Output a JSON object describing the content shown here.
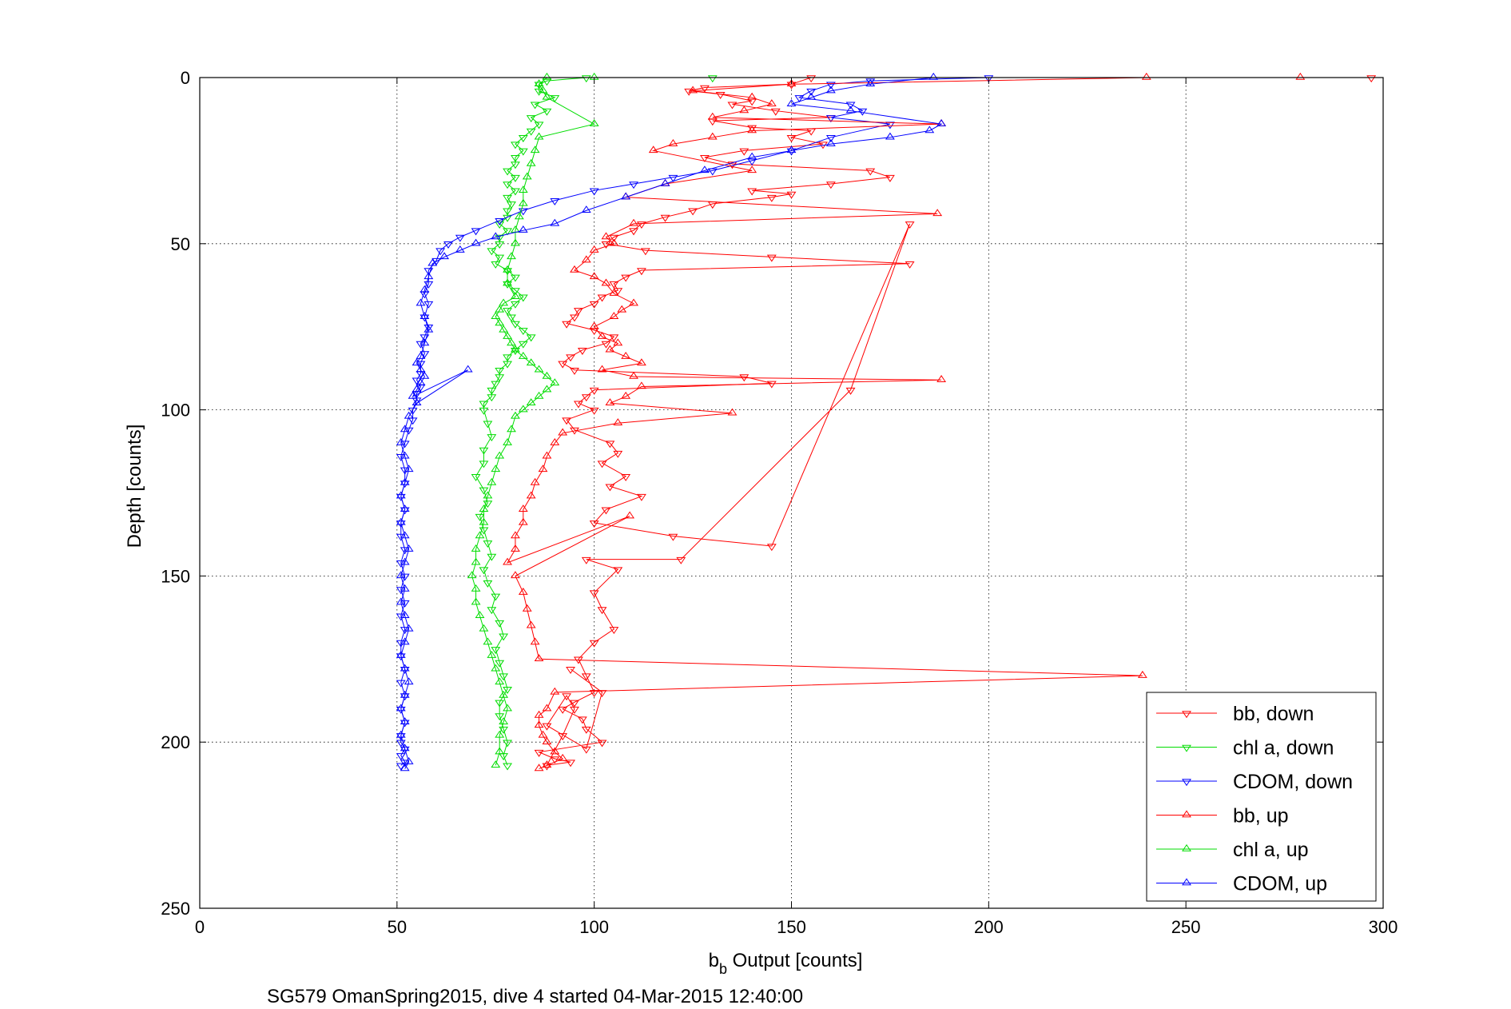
{
  "chart_data": {
    "type": "line",
    "xlabel_main": "b",
    "xlabel_sub": "b",
    "xlabel_rest": " Output [counts]",
    "ylabel": "Depth [counts]",
    "caption": "SG579 OmanSpring2015, dive 4 started 04-Mar-2015 12:40:00",
    "xlim": [
      0,
      300
    ],
    "ylim": [
      0,
      250
    ],
    "y_reversed": true,
    "xticks": [
      0,
      50,
      100,
      150,
      200,
      250,
      300
    ],
    "yticks": [
      0,
      50,
      100,
      150,
      200,
      250
    ],
    "grid": true,
    "legend_position": "bottom-right",
    "series": [
      {
        "name": "bb, down",
        "color": "#ff0000",
        "marker": "triangle-down",
        "x": [
          297,
          155,
          150,
          128,
          124,
          132,
          140,
          135,
          146,
          160,
          130,
          140,
          155,
          150,
          158,
          138,
          128,
          135,
          170,
          175,
          160,
          140,
          150,
          145,
          130,
          125,
          118,
          112,
          110,
          105,
          103,
          113,
          145,
          180,
          112,
          108,
          105,
          106,
          102,
          100,
          96,
          95,
          93,
          100,
          105,
          103,
          97,
          94,
          92,
          95,
          138,
          145,
          100,
          98,
          96,
          100,
          93,
          95,
          104,
          106,
          102,
          108,
          104,
          112,
          103,
          100,
          120,
          145,
          180,
          165,
          122,
          98,
          106,
          100,
          102,
          105,
          100,
          96,
          98,
          100,
          95,
          92,
          97,
          98,
          102,
          86,
          90,
          94,
          88,
          92,
          95,
          93,
          88,
          98,
          102,
          94
        ],
        "y": [
          0,
          0,
          2,
          3,
          4,
          5,
          7,
          8,
          10,
          12,
          13,
          15,
          16,
          18,
          20,
          22,
          24,
          26,
          28,
          30,
          32,
          34,
          35,
          36,
          38,
          40,
          42,
          44,
          46,
          48,
          50,
          52,
          54,
          56,
          58,
          60,
          62,
          64,
          66,
          68,
          70,
          72,
          74,
          76,
          78,
          80,
          82,
          84,
          86,
          88,
          90,
          92,
          94,
          96,
          98,
          100,
          103,
          106,
          110,
          113,
          116,
          120,
          123,
          126,
          130,
          134,
          138,
          141,
          44,
          94,
          145,
          145,
          148,
          155,
          160,
          166,
          170,
          175,
          180,
          185,
          188,
          190,
          193,
          196,
          200,
          203,
          205,
          206,
          207,
          198,
          190,
          186,
          195,
          202,
          185,
          178
        ]
      },
      {
        "name": "chl a, down",
        "color": "#00dd00",
        "marker": "triangle-down",
        "x": [
          130,
          98,
          88,
          86,
          86,
          90,
          85,
          88,
          84,
          86,
          84,
          82,
          80,
          82,
          80,
          80,
          78,
          80,
          78,
          80,
          78,
          79,
          78,
          78,
          76,
          78,
          76,
          76,
          74,
          76,
          75,
          78,
          80,
          78,
          80,
          82,
          80,
          78,
          79,
          80,
          82,
          84,
          82,
          80,
          78,
          78,
          76,
          76,
          75,
          74,
          74,
          72,
          72,
          73,
          74,
          72,
          72,
          70,
          72,
          73,
          71,
          72,
          73,
          74,
          72,
          73,
          75,
          74,
          76,
          77,
          75,
          76,
          77,
          78,
          76,
          76,
          77,
          78,
          77,
          78
        ],
        "y": [
          0,
          0,
          1,
          2,
          4,
          6,
          8,
          10,
          12,
          14,
          16,
          18,
          20,
          22,
          24,
          26,
          28,
          30,
          32,
          34,
          36,
          38,
          40,
          42,
          44,
          46,
          48,
          50,
          52,
          54,
          56,
          58,
          60,
          62,
          64,
          66,
          68,
          70,
          72,
          74,
          76,
          78,
          80,
          82,
          84,
          86,
          88,
          90,
          92,
          94,
          96,
          98,
          100,
          104,
          108,
          112,
          116,
          120,
          124,
          128,
          132,
          136,
          140,
          144,
          148,
          152,
          156,
          160,
          164,
          168,
          172,
          176,
          180,
          184,
          188,
          192,
          196,
          200,
          204,
          207
        ]
      },
      {
        "name": "CDOM, down",
        "color": "#0000ff",
        "marker": "triangle-down",
        "x": [
          200,
          170,
          160,
          155,
          152,
          165,
          168,
          160,
          175,
          160,
          150,
          140,
          130,
          120,
          110,
          100,
          90,
          82,
          76,
          70,
          66,
          63,
          61,
          60,
          58,
          58,
          57,
          58,
          57,
          58,
          57,
          56,
          57,
          56,
          56,
          55,
          56,
          55,
          55,
          54,
          54,
          53,
          52,
          51,
          52,
          52,
          51,
          52,
          51,
          51,
          52,
          51,
          52,
          51,
          52,
          51,
          52,
          51,
          51,
          52,
          51,
          52,
          51,
          52,
          51,
          51,
          52,
          51,
          52,
          51
        ],
        "y": [
          0,
          1,
          2,
          4,
          6,
          8,
          10,
          12,
          14,
          18,
          22,
          25,
          28,
          30,
          32,
          34,
          37,
          40,
          43,
          46,
          48,
          50,
          52,
          55,
          58,
          62,
          65,
          68,
          72,
          75,
          78,
          80,
          83,
          86,
          89,
          91,
          93,
          95,
          97,
          100,
          103,
          106,
          110,
          114,
          118,
          122,
          126,
          130,
          134,
          138,
          142,
          146,
          150,
          154,
          158,
          162,
          166,
          170,
          174,
          178,
          182,
          186,
          190,
          194,
          198,
          200,
          202,
          204,
          206,
          207
        ]
      },
      {
        "name": "bb, up",
        "color": "#ff0000",
        "marker": "triangle-up",
        "x": [
          279,
          240,
          150,
          125,
          140,
          145,
          138,
          130,
          188,
          140,
          130,
          120,
          115,
          140,
          118,
          108,
          187,
          110,
          103,
          105,
          100,
          98,
          95,
          100,
          103,
          105,
          110,
          107,
          105,
          100,
          102,
          106,
          104,
          108,
          112,
          102,
          110,
          188,
          112,
          108,
          104,
          135,
          106,
          92,
          90,
          88,
          87,
          85,
          84,
          82,
          82,
          80,
          80,
          78,
          109,
          80,
          82,
          83,
          84,
          85,
          86,
          239,
          90,
          88,
          86,
          86,
          87,
          88,
          90,
          92,
          88,
          86
        ],
        "y": [
          0,
          0,
          2,
          4,
          6,
          8,
          10,
          12,
          14,
          16,
          18,
          20,
          22,
          28,
          32,
          36,
          41,
          44,
          48,
          50,
          52,
          55,
          58,
          60,
          62,
          65,
          68,
          70,
          72,
          75,
          78,
          80,
          82,
          84,
          86,
          88,
          90,
          91,
          93,
          96,
          98,
          101,
          104,
          107,
          110,
          114,
          118,
          122,
          126,
          130,
          134,
          138,
          142,
          146,
          132,
          150,
          155,
          160,
          165,
          170,
          175,
          180,
          185,
          190,
          192,
          195,
          198,
          200,
          203,
          205,
          207,
          208
        ]
      },
      {
        "name": "chl a, up",
        "color": "#00dd00",
        "marker": "triangle-up",
        "x": [
          100,
          88,
          86,
          87,
          88,
          100,
          86,
          85,
          84,
          83,
          82,
          82,
          81,
          80,
          80,
          79,
          78,
          78,
          80,
          77,
          76,
          75,
          76,
          77,
          78,
          79,
          80,
          82,
          84,
          86,
          88,
          90,
          88,
          86,
          84,
          82,
          80,
          79,
          78,
          76,
          75,
          74,
          73,
          72,
          72,
          71,
          70,
          70,
          69,
          70,
          70,
          71,
          72,
          73,
          74,
          75,
          76,
          77,
          78,
          77,
          76,
          76,
          75
        ],
        "y": [
          0,
          0,
          2,
          4,
          6,
          14,
          18,
          22,
          26,
          30,
          34,
          38,
          42,
          46,
          50,
          54,
          58,
          62,
          66,
          68,
          70,
          72,
          74,
          76,
          78,
          80,
          82,
          84,
          86,
          88,
          90,
          92,
          94,
          96,
          98,
          100,
          102,
          106,
          110,
          114,
          118,
          122,
          126,
          130,
          134,
          138,
          142,
          146,
          150,
          154,
          158,
          162,
          166,
          170,
          174,
          178,
          182,
          186,
          190,
          194,
          198,
          203,
          207
        ]
      },
      {
        "name": "CDOM, up",
        "color": "#0000ff",
        "marker": "triangle-up",
        "x": [
          186,
          170,
          160,
          155,
          150,
          165,
          188,
          185,
          175,
          160,
          150,
          140,
          128,
          118,
          108,
          98,
          90,
          82,
          75,
          70,
          66,
          62,
          59,
          58,
          57,
          56,
          57,
          58,
          57,
          56,
          55,
          56,
          57,
          56,
          55,
          54,
          68,
          55,
          53,
          52,
          51,
          52,
          53,
          52,
          51,
          52,
          51,
          52,
          53,
          52,
          51,
          52,
          51,
          52,
          53,
          52,
          51,
          52,
          53,
          52,
          51,
          52,
          51,
          52,
          53,
          52
        ],
        "y": [
          0,
          2,
          4,
          6,
          8,
          10,
          14,
          16,
          18,
          20,
          22,
          24,
          28,
          32,
          36,
          40,
          44,
          46,
          48,
          50,
          52,
          54,
          56,
          60,
          64,
          68,
          72,
          76,
          80,
          84,
          86,
          88,
          90,
          92,
          94,
          96,
          88,
          98,
          102,
          106,
          110,
          114,
          118,
          122,
          126,
          130,
          134,
          138,
          142,
          146,
          150,
          154,
          158,
          162,
          166,
          170,
          174,
          178,
          182,
          186,
          190,
          194,
          198,
          202,
          206,
          208
        ]
      }
    ]
  }
}
